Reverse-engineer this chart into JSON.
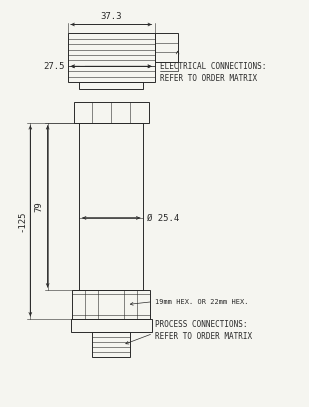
{
  "bg_color": "#f5f5f0",
  "line_color": "#2a2a2a",
  "text_color": "#2a2a2a",
  "fig_width": 3.09,
  "fig_height": 4.07,
  "dpi": 100,
  "annotations": {
    "dim_37_3": "37.3",
    "dim_27_5": "27.5",
    "dim_125": "-125",
    "dim_79": "79",
    "dim_25_4": "Ø 25.4",
    "elec_line1": "ELECTRICAL CONNECTIONS:",
    "elec_line2": "REFER TO ORDER MATRIX",
    "hex_label": "19mm HEX. OR 22mm HEX.",
    "proc_line1": "PROCESS CONNECTIONS:",
    "proc_line2": "REFER TO ORDER MATRIX"
  }
}
